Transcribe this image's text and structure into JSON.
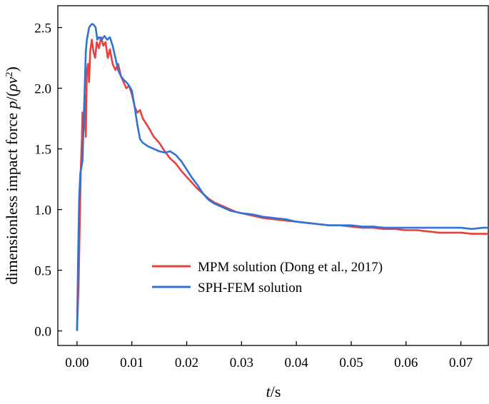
{
  "chart_data": {
    "type": "line",
    "title": "",
    "xlabel": "t/s",
    "ylabel": "dimensionless impact force p/(ρv²)",
    "xlabel_parts": {
      "var": "t",
      "unit": "/s"
    },
    "ylabel_parts": {
      "text": "dimensionless impact force ",
      "var_p": "p",
      "slash": "/(",
      "var_rho": "ρ",
      "var_v": "v",
      "sup": "2",
      "close": ")"
    },
    "xlim": [
      -0.0035,
      0.075
    ],
    "ylim": [
      -0.12,
      2.68
    ],
    "xticks": [
      0.0,
      0.01,
      0.02,
      0.03,
      0.04,
      0.05,
      0.06,
      0.07
    ],
    "xtick_labels": [
      "0.00",
      "0.01",
      "0.02",
      "0.03",
      "0.04",
      "0.05",
      "0.06",
      "0.07"
    ],
    "yticks": [
      0.0,
      0.5,
      1.0,
      1.5,
      2.0,
      2.5
    ],
    "ytick_labels": [
      "0.0",
      "0.5",
      "1.0",
      "1.5",
      "2.0",
      "2.5"
    ],
    "legend_position": "lower-center",
    "series": [
      {
        "name": "MPM solution (Dong et al., 2017)",
        "color": "#e8403c",
        "points": [
          [
            0.0,
            0.0
          ],
          [
            0.0003,
            0.4
          ],
          [
            0.0005,
            0.9
          ],
          [
            0.0007,
            1.35
          ],
          [
            0.0009,
            1.6
          ],
          [
            0.001,
            1.8
          ],
          [
            0.0012,
            1.65
          ],
          [
            0.0014,
            1.95
          ],
          [
            0.0016,
            1.6
          ],
          [
            0.0018,
            2.15
          ],
          [
            0.002,
            2.2
          ],
          [
            0.0022,
            2.05
          ],
          [
            0.0024,
            2.3
          ],
          [
            0.0027,
            2.4
          ],
          [
            0.003,
            2.3
          ],
          [
            0.0033,
            2.25
          ],
          [
            0.0036,
            2.38
          ],
          [
            0.004,
            2.33
          ],
          [
            0.0044,
            2.42
          ],
          [
            0.0048,
            2.35
          ],
          [
            0.0052,
            2.38
          ],
          [
            0.0056,
            2.25
          ],
          [
            0.006,
            2.32
          ],
          [
            0.0065,
            2.2
          ],
          [
            0.007,
            2.15
          ],
          [
            0.0075,
            2.2
          ],
          [
            0.008,
            2.1
          ],
          [
            0.0085,
            2.05
          ],
          [
            0.009,
            2.0
          ],
          [
            0.0095,
            2.02
          ],
          [
            0.01,
            1.95
          ],
          [
            0.0105,
            1.85
          ],
          [
            0.011,
            1.8
          ],
          [
            0.0115,
            1.82
          ],
          [
            0.012,
            1.75
          ],
          [
            0.013,
            1.68
          ],
          [
            0.014,
            1.6
          ],
          [
            0.015,
            1.55
          ],
          [
            0.016,
            1.48
          ],
          [
            0.017,
            1.42
          ],
          [
            0.018,
            1.38
          ],
          [
            0.019,
            1.32
          ],
          [
            0.02,
            1.27
          ],
          [
            0.021,
            1.22
          ],
          [
            0.022,
            1.17
          ],
          [
            0.023,
            1.13
          ],
          [
            0.024,
            1.09
          ],
          [
            0.025,
            1.06
          ],
          [
            0.026,
            1.04
          ],
          [
            0.027,
            1.02
          ],
          [
            0.028,
            1.0
          ],
          [
            0.029,
            0.98
          ],
          [
            0.03,
            0.97
          ],
          [
            0.032,
            0.95
          ],
          [
            0.034,
            0.93
          ],
          [
            0.036,
            0.92
          ],
          [
            0.038,
            0.91
          ],
          [
            0.04,
            0.9
          ],
          [
            0.042,
            0.89
          ],
          [
            0.044,
            0.88
          ],
          [
            0.046,
            0.87
          ],
          [
            0.048,
            0.87
          ],
          [
            0.05,
            0.86
          ],
          [
            0.052,
            0.85
          ],
          [
            0.054,
            0.85
          ],
          [
            0.056,
            0.84
          ],
          [
            0.058,
            0.84
          ],
          [
            0.06,
            0.83
          ],
          [
            0.062,
            0.83
          ],
          [
            0.064,
            0.82
          ],
          [
            0.066,
            0.81
          ],
          [
            0.068,
            0.81
          ],
          [
            0.07,
            0.81
          ],
          [
            0.072,
            0.8
          ],
          [
            0.074,
            0.8
          ],
          [
            0.075,
            0.8
          ]
        ]
      },
      {
        "name": "SPH-FEM solution",
        "color": "#2f73d9",
        "points": [
          [
            0.0,
            0.0
          ],
          [
            0.0002,
            0.6
          ],
          [
            0.0004,
            1.1
          ],
          [
            0.0006,
            1.3
          ],
          [
            0.0008,
            1.35
          ],
          [
            0.001,
            1.4
          ],
          [
            0.0012,
            1.7
          ],
          [
            0.0014,
            2.0
          ],
          [
            0.0016,
            2.3
          ],
          [
            0.0018,
            2.4
          ],
          [
            0.002,
            2.45
          ],
          [
            0.0022,
            2.5
          ],
          [
            0.0025,
            2.52
          ],
          [
            0.0028,
            2.53
          ],
          [
            0.0031,
            2.52
          ],
          [
            0.0034,
            2.5
          ],
          [
            0.0037,
            2.4
          ],
          [
            0.004,
            2.42
          ],
          [
            0.0045,
            2.4
          ],
          [
            0.005,
            2.43
          ],
          [
            0.0055,
            2.4
          ],
          [
            0.006,
            2.42
          ],
          [
            0.0065,
            2.35
          ],
          [
            0.007,
            2.25
          ],
          [
            0.0075,
            2.15
          ],
          [
            0.008,
            2.1
          ],
          [
            0.0085,
            2.07
          ],
          [
            0.009,
            2.05
          ],
          [
            0.0095,
            2.02
          ],
          [
            0.01,
            1.98
          ],
          [
            0.0105,
            1.85
          ],
          [
            0.011,
            1.7
          ],
          [
            0.0115,
            1.58
          ],
          [
            0.012,
            1.55
          ],
          [
            0.013,
            1.52
          ],
          [
            0.014,
            1.5
          ],
          [
            0.015,
            1.48
          ],
          [
            0.016,
            1.47
          ],
          [
            0.017,
            1.48
          ],
          [
            0.018,
            1.45
          ],
          [
            0.019,
            1.4
          ],
          [
            0.02,
            1.33
          ],
          [
            0.021,
            1.26
          ],
          [
            0.022,
            1.2
          ],
          [
            0.023,
            1.13
          ],
          [
            0.024,
            1.08
          ],
          [
            0.025,
            1.05
          ],
          [
            0.026,
            1.03
          ],
          [
            0.027,
            1.01
          ],
          [
            0.028,
            0.99
          ],
          [
            0.029,
            0.98
          ],
          [
            0.03,
            0.97
          ],
          [
            0.032,
            0.96
          ],
          [
            0.034,
            0.94
          ],
          [
            0.036,
            0.93
          ],
          [
            0.038,
            0.92
          ],
          [
            0.04,
            0.9
          ],
          [
            0.042,
            0.89
          ],
          [
            0.044,
            0.88
          ],
          [
            0.046,
            0.87
          ],
          [
            0.048,
            0.87
          ],
          [
            0.05,
            0.87
          ],
          [
            0.052,
            0.86
          ],
          [
            0.054,
            0.86
          ],
          [
            0.056,
            0.85
          ],
          [
            0.058,
            0.85
          ],
          [
            0.06,
            0.85
          ],
          [
            0.062,
            0.85
          ],
          [
            0.064,
            0.85
          ],
          [
            0.066,
            0.85
          ],
          [
            0.068,
            0.85
          ],
          [
            0.07,
            0.85
          ],
          [
            0.072,
            0.84
          ],
          [
            0.074,
            0.85
          ],
          [
            0.075,
            0.85
          ]
        ]
      }
    ]
  }
}
